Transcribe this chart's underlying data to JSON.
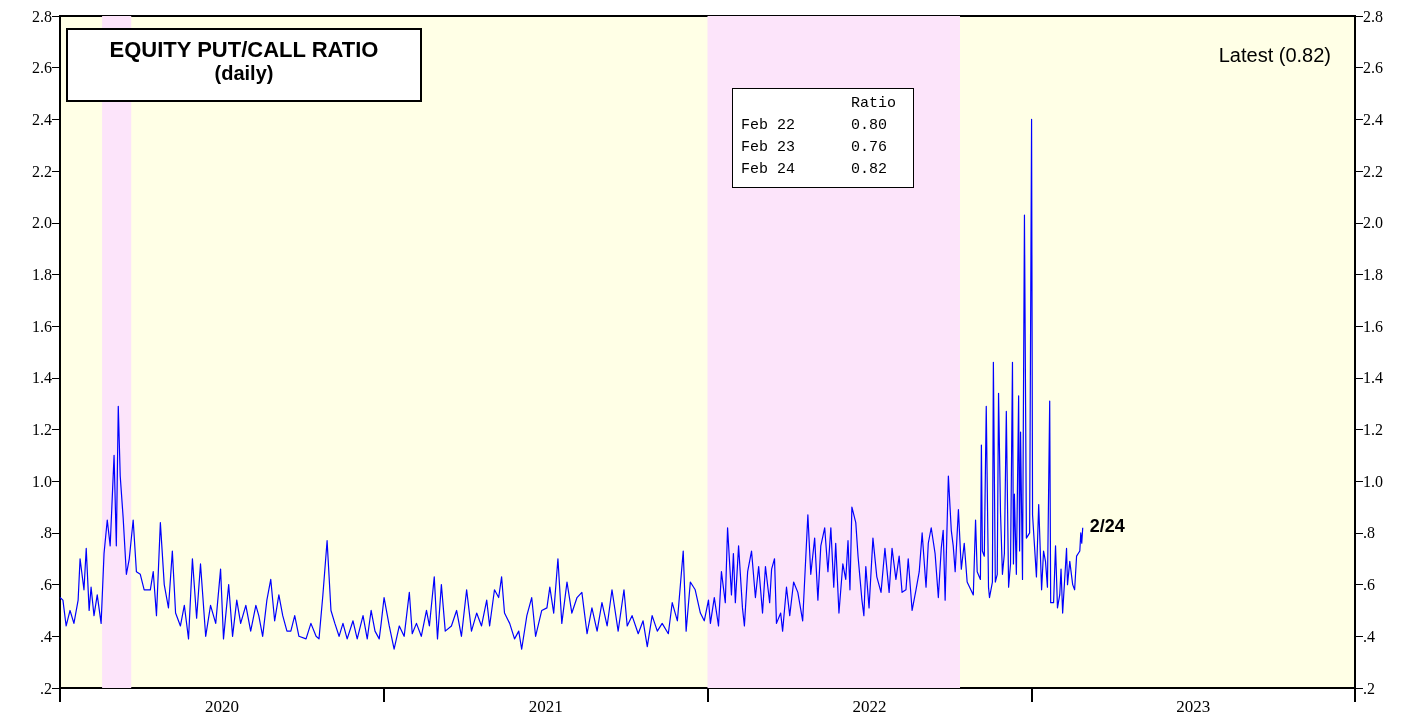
{
  "chart_data": {
    "type": "line",
    "title": "EQUITY PUT/CALL RATIO",
    "subtitle": "(daily)",
    "annotations": [
      "Latest (0.82)",
      {
        "text": "2/24",
        "x": 2023.159,
        "y": 0.82
      },
      "Ratio",
      "Feb 22",
      "0.80",
      "Feb 23",
      "0.76",
      "Feb 24",
      "0.82"
    ],
    "x": [
      2020.0,
      2020.009,
      2020.019,
      2020.031,
      2020.043,
      2020.056,
      2020.062,
      2020.074,
      2020.081,
      2020.09,
      2020.096,
      2020.105,
      2020.115,
      2020.127,
      2020.136,
      2020.146,
      2020.155,
      2020.167,
      2020.174,
      2020.18,
      2020.186,
      2020.195,
      2020.205,
      2020.214,
      2020.226,
      2020.236,
      2020.248,
      2020.26,
      2020.279,
      2020.288,
      2020.298,
      2020.31,
      2020.322,
      2020.335,
      2020.347,
      2020.357,
      2020.372,
      2020.384,
      2020.397,
      2020.409,
      2020.422,
      2020.434,
      2020.45,
      2020.465,
      2020.481,
      2020.496,
      2020.505,
      2020.521,
      2020.533,
      2020.546,
      2020.558,
      2020.574,
      2020.589,
      2020.605,
      2020.614,
      2020.626,
      2020.639,
      2020.651,
      2020.663,
      2020.676,
      2020.688,
      2020.701,
      2020.713,
      2020.725,
      2020.738,
      2020.76,
      2020.775,
      2020.791,
      2020.8,
      2020.812,
      2020.825,
      2020.837,
      2020.849,
      2020.862,
      2020.874,
      2020.887,
      2020.905,
      2020.918,
      2020.936,
      2020.949,
      2020.961,
      2020.973,
      2020.986,
      2020.992,
      2021.001,
      2021.017,
      2021.032,
      2021.048,
      2021.063,
      2021.079,
      2021.088,
      2021.101,
      2021.116,
      2021.132,
      2021.141,
      2021.156,
      2021.166,
      2021.178,
      2021.19,
      2021.209,
      2021.225,
      2021.24,
      2021.256,
      2021.271,
      2021.287,
      2021.302,
      2021.318,
      2021.327,
      2021.342,
      2021.355,
      2021.364,
      2021.373,
      2021.389,
      2021.404,
      2021.417,
      2021.426,
      2021.442,
      2021.457,
      2021.469,
      2021.488,
      2021.504,
      2021.513,
      2021.525,
      2021.538,
      2021.55,
      2021.566,
      2021.581,
      2021.597,
      2021.612,
      2021.628,
      2021.643,
      2021.659,
      2021.674,
      2021.69,
      2021.705,
      2021.724,
      2021.742,
      2021.752,
      2021.767,
      2021.786,
      2021.801,
      2021.814,
      2021.829,
      2021.845,
      2021.86,
      2021.879,
      2021.891,
      2021.907,
      2021.925,
      2021.934,
      2021.947,
      2021.962,
      2021.978,
      2021.99,
      2022.003,
      2022.009,
      2022.021,
      2022.034,
      2022.043,
      2022.055,
      2022.062,
      2022.074,
      2022.08,
      2022.086,
      2022.096,
      2022.108,
      2022.114,
      2022.124,
      2022.136,
      2022.148,
      2022.158,
      2022.17,
      2022.179,
      2022.192,
      2022.198,
      2022.207,
      2022.213,
      2022.226,
      2022.232,
      2022.244,
      2022.254,
      2022.266,
      2022.279,
      2022.294,
      2022.31,
      2022.319,
      2022.331,
      2022.341,
      2022.35,
      2022.362,
      2022.372,
      2022.381,
      2022.39,
      2022.396,
      2022.406,
      2022.418,
      2022.427,
      2022.434,
      2022.44,
      2022.446,
      2022.458,
      2022.465,
      2022.477,
      2022.483,
      2022.489,
      2022.499,
      2022.511,
      2022.523,
      2022.536,
      2022.548,
      2022.561,
      2022.57,
      2022.582,
      2022.592,
      2022.601,
      2022.613,
      2022.62,
      2022.632,
      2022.644,
      2022.654,
      2022.663,
      2022.675,
      2022.682,
      2022.691,
      2022.703,
      2022.713,
      2022.722,
      2022.728,
      2022.734,
      2022.744,
      2022.753,
      2022.759,
      2022.765,
      2022.775,
      2022.784,
      2022.793,
      2022.802,
      2022.821,
      2022.828,
      2022.833,
      2022.843,
      2022.846,
      2022.849,
      2022.855,
      2022.861,
      2022.868,
      2022.871,
      2022.88,
      2022.883,
      2022.889,
      2022.895,
      2022.899,
      2022.905,
      2022.911,
      2022.917,
      2022.923,
      2022.93,
      2022.936,
      2022.942,
      2022.945,
      2022.948,
      2022.954,
      2022.961,
      2022.964,
      2022.967,
      2022.973,
      2022.979,
      2022.985,
      2022.995,
      2023.001,
      2023.004,
      2023.01,
      2023.016,
      2023.023,
      2023.032,
      2023.038,
      2023.044,
      2023.05,
      2023.057,
      2023.06,
      2023.069,
      2023.075,
      2023.081,
      2023.088,
      2023.092,
      2023.097,
      2023.109,
      2023.112,
      2023.119,
      2023.128,
      2023.134,
      2023.14,
      2023.15,
      2023.153,
      2023.156,
      2023.159
    ],
    "series": [
      {
        "color": "#0000ff",
        "values": [
          0.55,
          0.54,
          0.44,
          0.5,
          0.45,
          0.54,
          0.7,
          0.58,
          0.74,
          0.5,
          0.59,
          0.48,
          0.56,
          0.45,
          0.72,
          0.85,
          0.75,
          1.1,
          0.75,
          1.29,
          1.02,
          0.86,
          0.64,
          0.7,
          0.85,
          0.65,
          0.64,
          0.58,
          0.58,
          0.65,
          0.48,
          0.84,
          0.6,
          0.51,
          0.73,
          0.49,
          0.44,
          0.52,
          0.39,
          0.7,
          0.47,
          0.68,
          0.4,
          0.52,
          0.45,
          0.66,
          0.39,
          0.6,
          0.4,
          0.54,
          0.45,
          0.52,
          0.42,
          0.52,
          0.48,
          0.4,
          0.54,
          0.62,
          0.46,
          0.56,
          0.48,
          0.42,
          0.42,
          0.48,
          0.4,
          0.39,
          0.45,
          0.4,
          0.39,
          0.56,
          0.77,
          0.5,
          0.45,
          0.4,
          0.45,
          0.39,
          0.46,
          0.39,
          0.48,
          0.39,
          0.5,
          0.42,
          0.39,
          0.45,
          0.55,
          0.44,
          0.35,
          0.44,
          0.4,
          0.57,
          0.41,
          0.45,
          0.4,
          0.5,
          0.44,
          0.63,
          0.39,
          0.6,
          0.42,
          0.44,
          0.5,
          0.4,
          0.58,
          0.42,
          0.49,
          0.44,
          0.54,
          0.44,
          0.58,
          0.55,
          0.63,
          0.49,
          0.45,
          0.39,
          0.42,
          0.35,
          0.48,
          0.55,
          0.4,
          0.5,
          0.51,
          0.59,
          0.49,
          0.7,
          0.45,
          0.61,
          0.49,
          0.55,
          0.57,
          0.41,
          0.51,
          0.42,
          0.53,
          0.44,
          0.58,
          0.42,
          0.58,
          0.44,
          0.48,
          0.41,
          0.46,
          0.36,
          0.48,
          0.42,
          0.45,
          0.41,
          0.53,
          0.46,
          0.73,
          0.42,
          0.61,
          0.58,
          0.49,
          0.46,
          0.54,
          0.45,
          0.55,
          0.44,
          0.65,
          0.53,
          0.82,
          0.56,
          0.72,
          0.53,
          0.75,
          0.51,
          0.44,
          0.65,
          0.73,
          0.55,
          0.67,
          0.49,
          0.67,
          0.53,
          0.66,
          0.7,
          0.45,
          0.49,
          0.42,
          0.59,
          0.48,
          0.61,
          0.57,
          0.46,
          0.87,
          0.64,
          0.78,
          0.54,
          0.75,
          0.82,
          0.65,
          0.82,
          0.59,
          0.76,
          0.49,
          0.68,
          0.62,
          0.77,
          0.58,
          0.9,
          0.84,
          0.71,
          0.54,
          0.48,
          0.67,
          0.51,
          0.78,
          0.63,
          0.57,
          0.74,
          0.57,
          0.74,
          0.62,
          0.71,
          0.57,
          0.58,
          0.7,
          0.5,
          0.58,
          0.65,
          0.8,
          0.59,
          0.76,
          0.82,
          0.72,
          0.55,
          0.74,
          0.81,
          0.54,
          1.02,
          0.81,
          0.75,
          0.65,
          0.89,
          0.66,
          0.76,
          0.61,
          0.56,
          0.85,
          0.65,
          0.62,
          1.14,
          0.73,
          0.71,
          1.29,
          0.59,
          0.55,
          0.61,
          1.46,
          0.61,
          0.64,
          1.34,
          0.88,
          0.64,
          0.72,
          1.27,
          0.59,
          0.68,
          1.46,
          0.68,
          0.95,
          0.64,
          1.33,
          0.73,
          1.19,
          0.62,
          2.03,
          0.78,
          0.8,
          2.4,
          0.87,
          0.75,
          0.63,
          0.91,
          0.58,
          0.73,
          0.69,
          0.59,
          1.31,
          0.53,
          0.53,
          0.75,
          0.51,
          0.56,
          0.66,
          0.49,
          0.74,
          0.6,
          0.69,
          0.6,
          0.58,
          0.71,
          0.73,
          0.8,
          0.76,
          0.82
        ]
      }
    ],
    "xlim": [
      2020,
      2024
    ],
    "xticks": [
      {
        "value": 2020,
        "label": null
      },
      {
        "value": 2020.5,
        "label": "2020"
      },
      {
        "value": 2021,
        "label": null
      },
      {
        "value": 2021.5,
        "label": "2021"
      },
      {
        "value": 2022,
        "label": null
      },
      {
        "value": 2022.5,
        "label": "2022"
      },
      {
        "value": 2023,
        "label": null
      },
      {
        "value": 2023.5,
        "label": "2023"
      },
      {
        "value": 2024,
        "label": null
      }
    ],
    "ylim": [
      0.2,
      2.8
    ],
    "yticks": [
      {
        "value": 0.2,
        "label": ".2"
      },
      {
        "value": 0.4,
        "label": ".4"
      },
      {
        "value": 0.6,
        "label": ".6"
      },
      {
        "value": 0.8,
        "label": ".8"
      },
      {
        "value": 1.0,
        "label": "1.0"
      },
      {
        "value": 1.2,
        "label": "1.2"
      },
      {
        "value": 1.4,
        "label": "1.4"
      },
      {
        "value": 1.6,
        "label": "1.6"
      },
      {
        "value": 1.8,
        "label": "1.8"
      },
      {
        "value": 2.0,
        "label": "2.0"
      },
      {
        "value": 2.2,
        "label": "2.2"
      },
      {
        "value": 2.4,
        "label": "2.4"
      },
      {
        "value": 2.6,
        "label": "2.6"
      },
      {
        "value": 2.8,
        "label": "2.8"
      }
    ],
    "y2lim": [
      0.2,
      2.8
    ],
    "y2ticks": [
      {
        "value": 0.2,
        "label": ".2"
      },
      {
        "value": 0.4,
        "label": ".4"
      },
      {
        "value": 0.6,
        "label": ".6"
      },
      {
        "value": 0.8,
        "label": ".8"
      },
      {
        "value": 1.0,
        "label": "1.0"
      },
      {
        "value": 1.2,
        "label": "1.2"
      },
      {
        "value": 1.4,
        "label": "1.4"
      },
      {
        "value": 1.6,
        "label": "1.6"
      },
      {
        "value": 1.8,
        "label": "1.8"
      },
      {
        "value": 2.0,
        "label": "2.0"
      },
      {
        "value": 2.2,
        "label": "2.2"
      },
      {
        "value": 2.4,
        "label": "2.4"
      },
      {
        "value": 2.6,
        "label": "2.6"
      },
      {
        "value": 2.8,
        "label": "2.8"
      }
    ],
    "bands": [
      {
        "axis": "x",
        "from": 2020.13,
        "to": 2020.22,
        "color": "#fce4fa"
      },
      {
        "axis": "x",
        "from": 2022.0,
        "to": 2022.78,
        "color": "#fce4fa"
      }
    ],
    "grid": false,
    "marker": "none",
    "line_style": "solid"
  }
}
